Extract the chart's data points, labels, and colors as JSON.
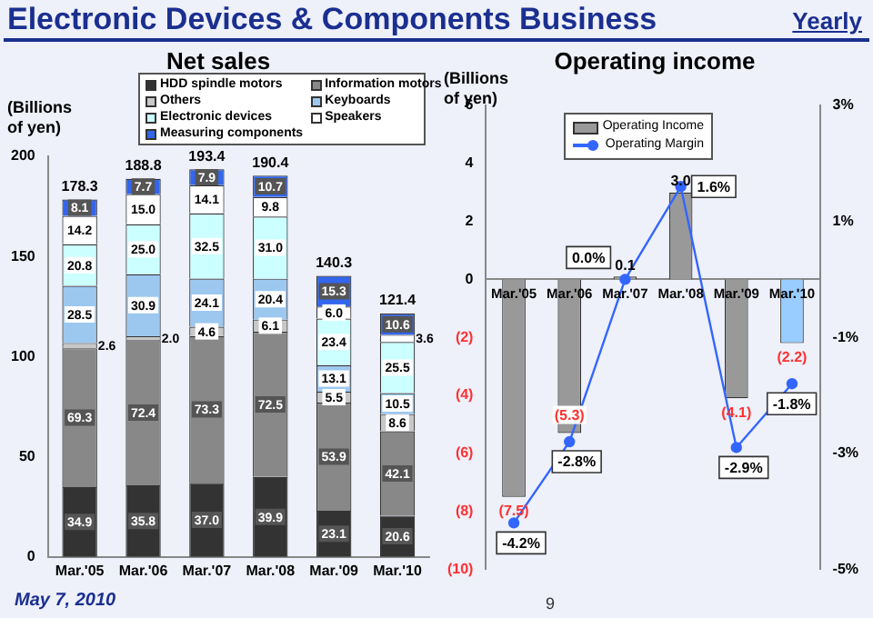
{
  "chart_data": [
    {
      "type": "bar",
      "title": "Net sales",
      "ylabel": "(Billions of yen)",
      "stacked": true,
      "legend": "top",
      "annotations": [
        "Electronic Devices & Components Business",
        "May 7, 2010"
      ],
      "categories": [
        "Mar.'05",
        "Mar.'06",
        "Mar.'07",
        "Mar.'08",
        "Mar.'09",
        "Mar.'10"
      ],
      "ylim": [
        0,
        200
      ],
      "yticks": [
        0,
        50,
        100,
        150,
        200
      ],
      "series": [
        {
          "name": "HDD spindle motors",
          "color": "#333333",
          "values": [
            34.9,
            35.8,
            37.0,
            39.9,
            23.1,
            20.6
          ],
          "value_labels": [
            "34.9",
            "35.8",
            "37.0",
            "39.9",
            "23.1",
            "20.6"
          ]
        },
        {
          "name": "Information motors",
          "color": "#888888",
          "values": [
            69.3,
            72.4,
            73.3,
            72.5,
            53.9,
            42.1
          ],
          "value_labels": [
            "69.3",
            "72.4",
            "73.3",
            "72.5",
            "53.9",
            "42.1"
          ]
        },
        {
          "name": "Others",
          "color": "#c8c8c8",
          "values": [
            2.6,
            2.0,
            4.6,
            6.1,
            5.5,
            8.6
          ],
          "value_labels": [
            "2.6",
            "2.0",
            "4.6",
            "6.1",
            "5.5",
            "8.6"
          ]
        },
        {
          "name": "Keyboards",
          "color": "#9cc8f0",
          "values": [
            28.5,
            30.9,
            24.1,
            20.4,
            13.1,
            10.5
          ],
          "value_labels": [
            "28.5",
            "30.9",
            "24.1",
            "20.4",
            "13.1",
            "10.5"
          ]
        },
        {
          "name": "Electronic devices",
          "color": "#ccffff",
          "values": [
            20.8,
            25.0,
            32.5,
            31.0,
            23.4,
            25.5
          ],
          "value_labels": [
            "20.8",
            "25.0",
            "32.5",
            "31.0",
            "23.4",
            "25.5"
          ]
        },
        {
          "name": "Speakers",
          "color": "#ffffff",
          "values": [
            14.2,
            15.0,
            14.1,
            9.8,
            6.0,
            3.6
          ],
          "value_labels": [
            "14.2",
            "15.0",
            "14.1",
            "9.8",
            "6.0",
            "3.6"
          ]
        },
        {
          "name": "Measuring components",
          "color": "#3366ee",
          "values": [
            8.1,
            7.7,
            7.9,
            10.7,
            15.3,
            10.6
          ],
          "value_labels": [
            "8.1",
            "7.7",
            "7.9",
            "10.7",
            "15.3",
            "10.6"
          ]
        }
      ],
      "totals": [
        "178.3",
        "188.8",
        "193.4",
        "190.4",
        "140.3",
        "121.4"
      ]
    },
    {
      "type": "bar",
      "title": "Operating income",
      "ylabel": "(Billions of yen)",
      "legend": "top left",
      "marker": "circle",
      "annotations": [
        "Yearly",
        "9"
      ],
      "categories": [
        "Mar.'05",
        "Mar.'06",
        "Mar.'07",
        "Mar.'08",
        "Mar.'09",
        "Mar.'10"
      ],
      "ylim": [
        -10,
        6
      ],
      "yticks": [
        {
          "value": -10,
          "label": "(10)"
        },
        {
          "value": -8,
          "label": "(8)"
        },
        {
          "value": -6,
          "label": "(6)"
        },
        {
          "value": -4,
          "label": "(4)"
        },
        {
          "value": -2,
          "label": "(2)"
        },
        0,
        2,
        4,
        6
      ],
      "y2lim": [
        -5,
        3
      ],
      "y2ticks": [
        {
          "value": -5,
          "label": "-5%"
        },
        {
          "value": -3,
          "label": "-3%"
        },
        {
          "value": -1,
          "label": "-1%"
        },
        {
          "value": 1,
          "label": "1%"
        },
        {
          "value": 3,
          "label": "3%"
        }
      ],
      "series": [
        {
          "name": "Operating Income",
          "color": "#999999",
          "colors": [
            "#999999",
            "#999999",
            "#999999",
            "#999999",
            "#999999",
            "#99ccff"
          ],
          "values": [
            -7.5,
            -5.3,
            0.1,
            3.0,
            -4.1,
            -2.2
          ],
          "value_labels": [
            "(7.5)",
            "(5.3)",
            "0.1",
            "3.0",
            "(4.1)",
            "(2.2)"
          ]
        },
        {
          "name": "Operating Margin",
          "type": "line",
          "axis": "y2",
          "color": "#3366ff",
          "values": [
            -4.2,
            -2.8,
            0.0,
            1.6,
            -2.9,
            -1.8
          ],
          "value_labels": [
            "-4.2%",
            "-2.8%",
            "0.0%",
            "1.6%",
            "-2.9%",
            "-1.8%"
          ]
        }
      ]
    }
  ]
}
